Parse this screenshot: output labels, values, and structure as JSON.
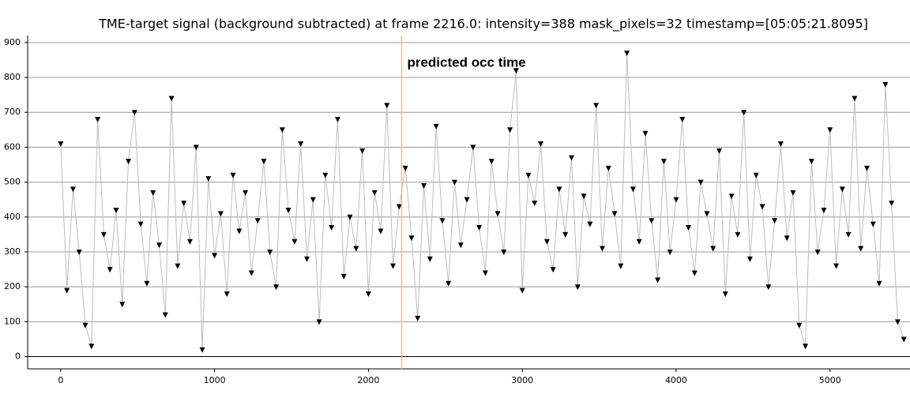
{
  "chart_data": {
    "type": "line",
    "title": "TME-target signal (background subtracted) at frame 2216.0: intensity=388 mask_pixels=32 timestamp=[05:05:21.8095]",
    "annotation": "predicted occ time",
    "vline": 2216,
    "vline_color": "#d8c98a",
    "xlim": [
      -215,
      5520
    ],
    "ylim": [
      -35,
      920
    ],
    "xticks": [
      0,
      1000,
      2000,
      3000,
      4000,
      5000
    ],
    "yticks": [
      0,
      100,
      200,
      300,
      400,
      500,
      600,
      700,
      800,
      900
    ],
    "grid": true,
    "series": [
      {
        "color": "#000000",
        "line_color": "#bdbdbd",
        "x": [
          0,
          40,
          80,
          120,
          160,
          200,
          240,
          280,
          320,
          360,
          400,
          440,
          480,
          520,
          560,
          600,
          640,
          680,
          720,
          760,
          800,
          840,
          880,
          920,
          960,
          1000,
          1040,
          1080,
          1120,
          1160,
          1200,
          1240,
          1280,
          1320,
          1360,
          1400,
          1440,
          1480,
          1520,
          1560,
          1600,
          1640,
          1680,
          1720,
          1760,
          1800,
          1840,
          1880,
          1920,
          1960,
          2000,
          2040,
          2080,
          2120,
          2160,
          2200,
          2240,
          2280,
          2320,
          2360,
          2400,
          2440,
          2480,
          2520,
          2560,
          2600,
          2640,
          2680,
          2720,
          2760,
          2800,
          2840,
          2880,
          2920,
          2960,
          3000,
          3040,
          3080,
          3120,
          3160,
          3200,
          3240,
          3280,
          3320,
          3360,
          3400,
          3440,
          3480,
          3520,
          3560,
          3600,
          3640,
          3680,
          3720,
          3760,
          3800,
          3840,
          3880,
          3920,
          3960,
          4000,
          4040,
          4080,
          4120,
          4160,
          4200,
          4240,
          4280,
          4320,
          4360,
          4400,
          4440,
          4480,
          4520,
          4560,
          4600,
          4640,
          4680,
          4720,
          4760,
          4800,
          4840,
          4880,
          4920,
          4960,
          5000,
          5040,
          5080,
          5120,
          5160,
          5200,
          5240,
          5280,
          5320,
          5360,
          5400,
          5440,
          5480
        ],
        "values": [
          610,
          190,
          480,
          300,
          90,
          30,
          680,
          350,
          250,
          420,
          150,
          560,
          700,
          380,
          210,
          470,
          320,
          120,
          740,
          260,
          440,
          330,
          600,
          20,
          510,
          290,
          410,
          180,
          520,
          360,
          470,
          240,
          390,
          560,
          300,
          200,
          650,
          420,
          330,
          610,
          280,
          450,
          100,
          520,
          370,
          680,
          230,
          400,
          310,
          590,
          180,
          470,
          360,
          720,
          260,
          430,
          540,
          340,
          110,
          490,
          280,
          660,
          390,
          210,
          500,
          320,
          450,
          600,
          370,
          240,
          560,
          410,
          300,
          650,
          820,
          190,
          520,
          440,
          610,
          330,
          250,
          480,
          350,
          570,
          200,
          460,
          380,
          720,
          310,
          540,
          410,
          260,
          870,
          480,
          330,
          640,
          390,
          220,
          560,
          300,
          450,
          680,
          370,
          240,
          500,
          410,
          310,
          590,
          180,
          460,
          350,
          700,
          280,
          520,
          430,
          200,
          390,
          610,
          340,
          470,
          90,
          30,
          560,
          300,
          420,
          650,
          260,
          480,
          350,
          740,
          310,
          540,
          380,
          210,
          780,
          440,
          100,
          50
        ]
      }
    ]
  }
}
